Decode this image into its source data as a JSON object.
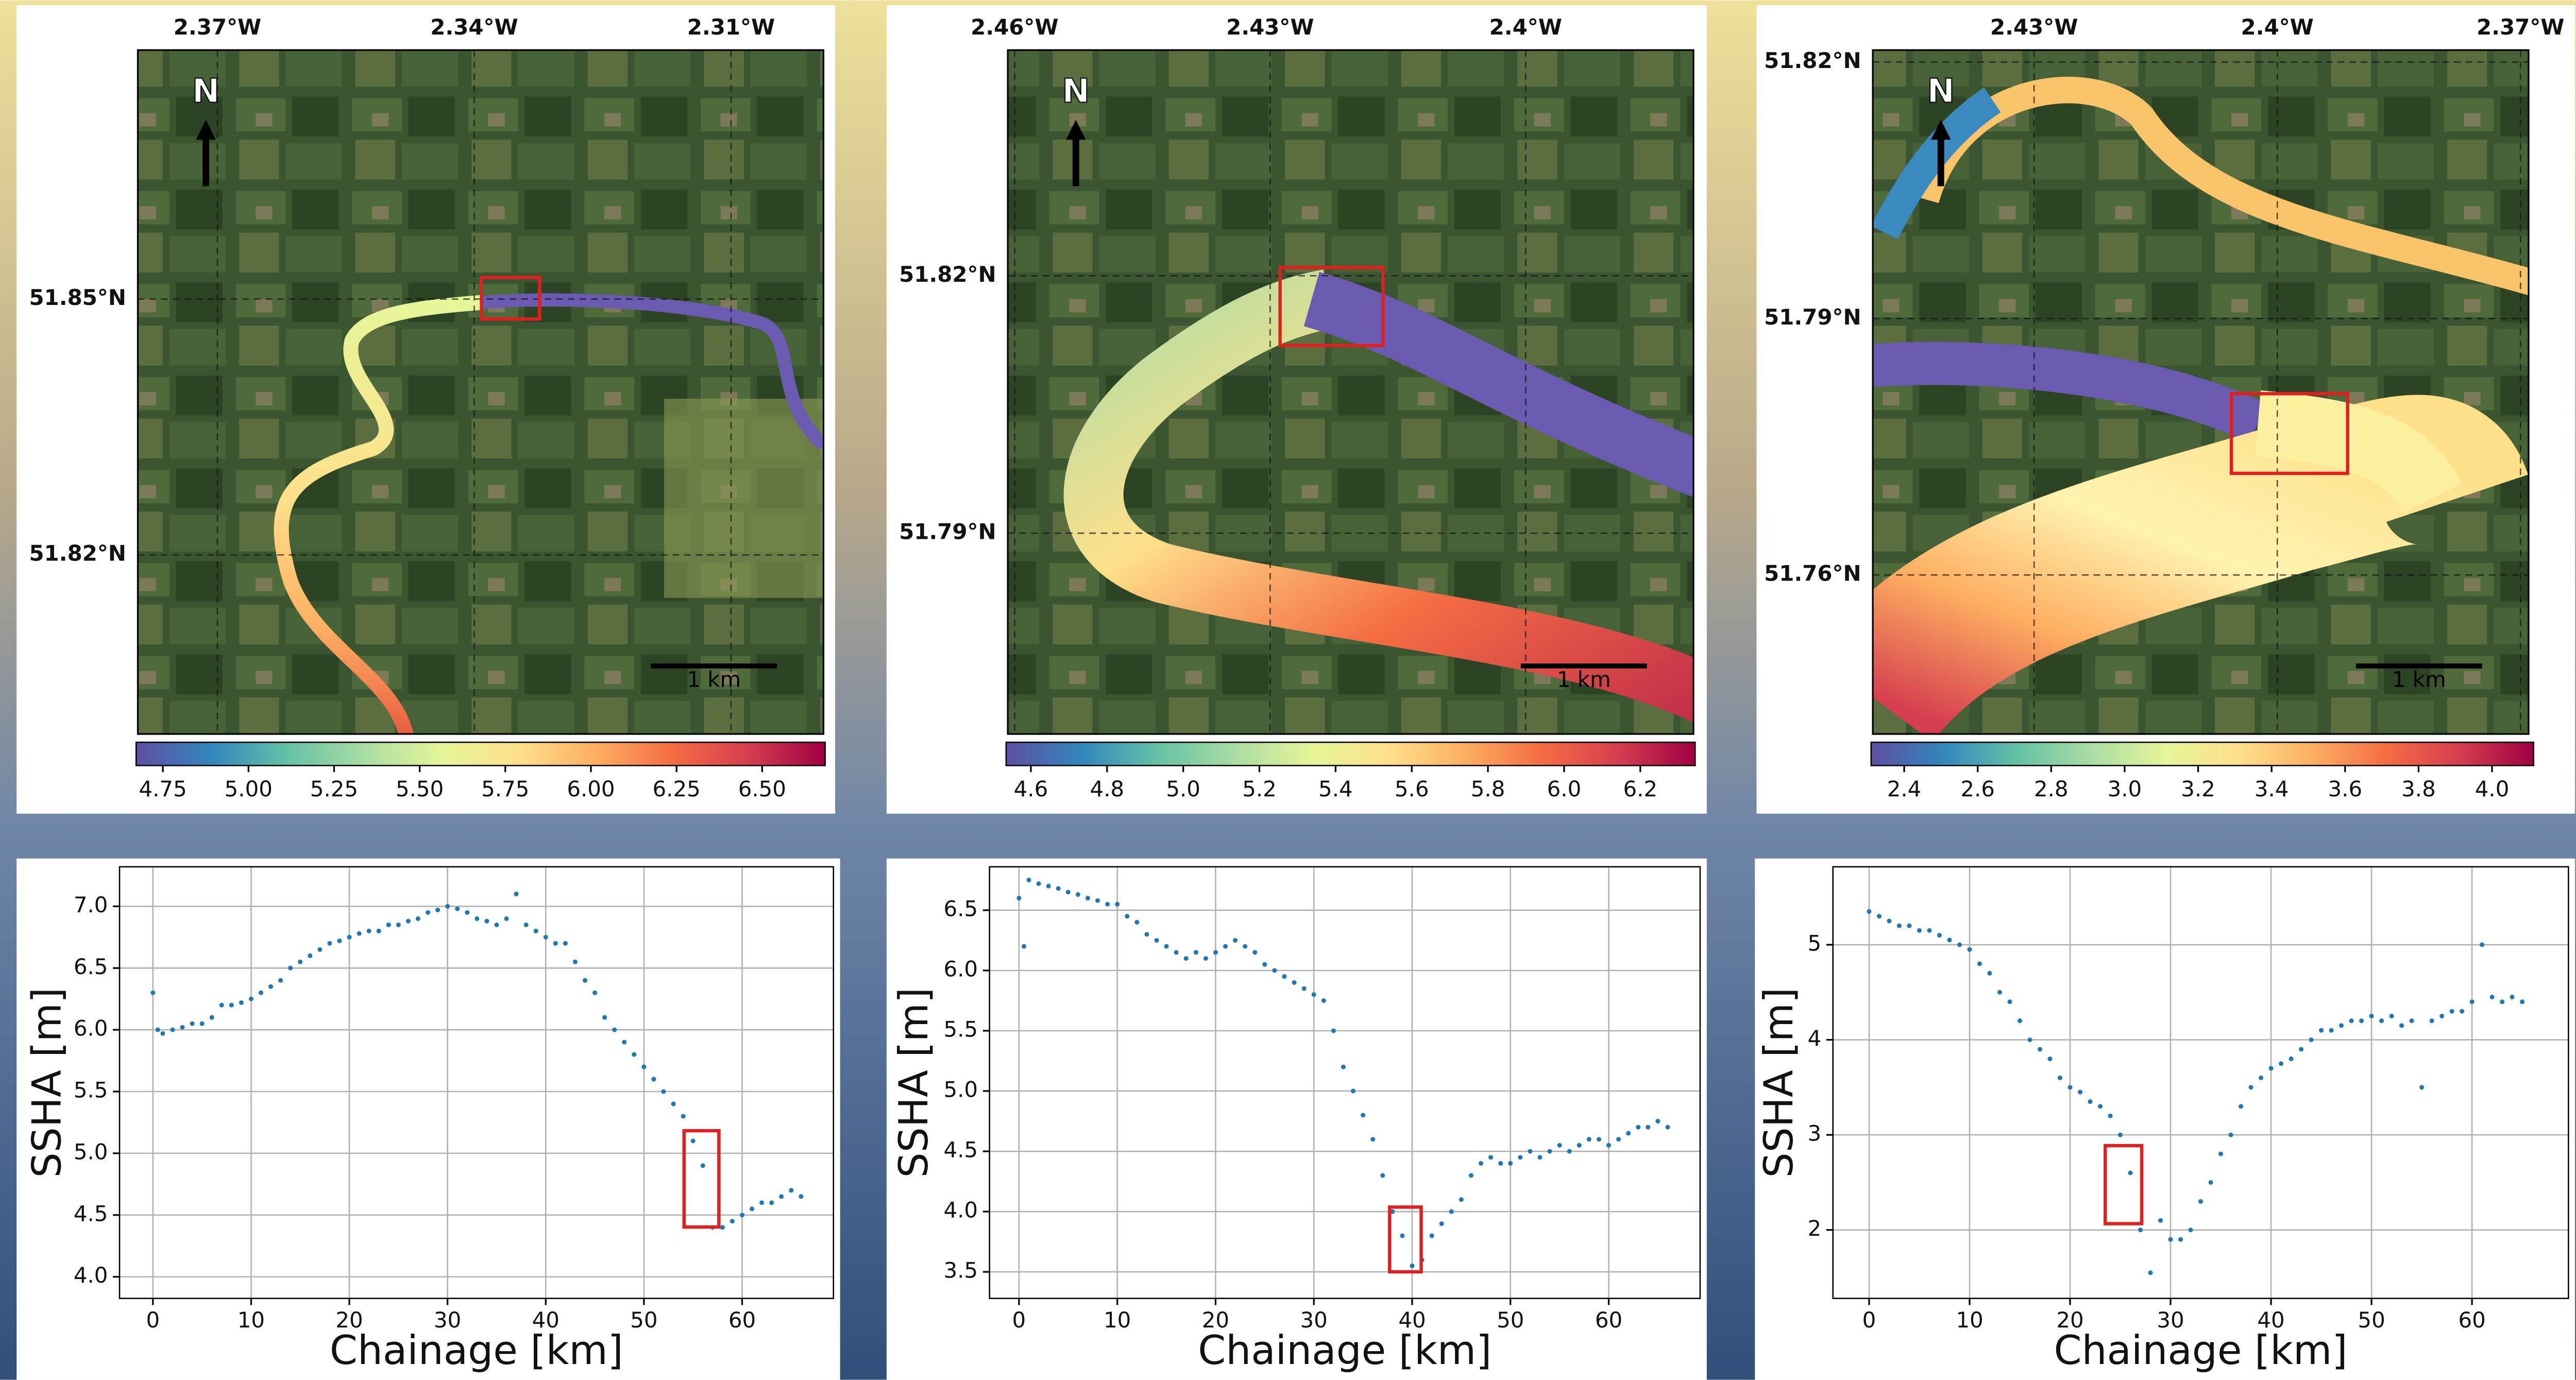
{
  "chart_data": [
    {
      "type": "map",
      "north_label": "N",
      "scale_label": "1 km",
      "xlim": [
        -2.3793,
        -2.2992
      ],
      "ylim": [
        51.799,
        51.8792
      ],
      "xticks": [
        {
          "value": -2.37,
          "label": "2.37°W"
        },
        {
          "value": -2.34,
          "label": "2.34°W"
        },
        {
          "value": -2.31,
          "label": "2.31°W"
        }
      ],
      "yticks": [
        {
          "value": 51.85,
          "label": "51.85°N"
        },
        {
          "value": 51.82,
          "label": "51.82°N"
        }
      ],
      "grid": true,
      "colorbar": {
        "lim": [
          4.672,
          6.684
        ],
        "colors": [
          "#5e4fa2",
          "#3288bd",
          "#66c2a5",
          "#abdda4",
          "#e6f598",
          "#fee08b",
          "#fdae61",
          "#f46d43",
          "#d53e4f",
          "#9e0142"
        ],
        "ticks": [
          4.75,
          {
            "value": 5,
            "label": "5.00"
          },
          5.25,
          {
            "value": 5.5,
            "label": "5.50"
          },
          5.75,
          {
            "value": 6,
            "label": "6.00"
          },
          6.25,
          {
            "value": 6.5,
            "label": "6.50"
          }
        ]
      }
    },
    {
      "type": "map",
      "north_label": "N",
      "scale_label": "1 km",
      "xlim": [
        -2.4608,
        -2.3803
      ],
      "ylim": [
        51.7666,
        51.8463
      ],
      "xticks": [
        {
          "value": -2.46,
          "label": "2.46°W"
        },
        {
          "value": -2.43,
          "label": "2.43°W"
        },
        {
          "value": -2.4,
          "label": "2.4°W"
        }
      ],
      "yticks": [
        {
          "value": 51.82,
          "label": "51.82°N"
        },
        {
          "value": 51.79,
          "label": "51.79°N"
        }
      ],
      "grid": true,
      "colorbar": {
        "lim": [
          4.535,
          6.344
        ],
        "colors": [
          "#5e4fa2",
          "#3288bd",
          "#66c2a5",
          "#abdda4",
          "#e6f598",
          "#fee08b",
          "#fdae61",
          "#f46d43",
          "#d53e4f",
          "#9e0142"
        ],
        "ticks": [
          4.6,
          4.8,
          {
            "value": 5,
            "label": "5.0"
          },
          5.2,
          5.4,
          5.6,
          5.8,
          {
            "value": 6,
            "label": "6.0"
          },
          6.2
        ]
      }
    },
    {
      "type": "map",
      "north_label": "N",
      "scale_label": "1 km",
      "xlim": [
        -2.4499,
        -2.369
      ],
      "ylim": [
        51.7414,
        51.8214
      ],
      "xticks": [
        {
          "value": -2.43,
          "label": "2.43°W"
        },
        {
          "value": -2.4,
          "label": "2.4°W"
        },
        {
          "value": -2.37,
          "label": "2.37°W"
        }
      ],
      "yticks": [
        {
          "value": 51.82,
          "label": "51.82°N"
        },
        {
          "value": 51.79,
          "label": "51.79°N"
        },
        {
          "value": 51.76,
          "label": "51.76°N"
        }
      ],
      "grid": true,
      "colorbar": {
        "lim": [
          2.31,
          4.113
        ],
        "colors": [
          "#5e4fa2",
          "#3288bd",
          "#66c2a5",
          "#abdda4",
          "#e6f598",
          "#fee08b",
          "#fdae61",
          "#f46d43",
          "#d53e4f",
          "#9e0142"
        ],
        "ticks": [
          2.4,
          2.6,
          2.8,
          {
            "value": 3,
            "label": "3.0"
          },
          3.2,
          3.4,
          3.6,
          3.8,
          {
            "value": 4,
            "label": "4.0"
          }
        ]
      }
    },
    {
      "type": "scatter",
      "x_label": "Chainage [km]",
      "y_label": "SSHA [m]",
      "color": "#1f77b4",
      "grid": true,
      "xlim": [
        -3.4,
        69.3
      ],
      "ylim": [
        3.825,
        7.32
      ],
      "xticks": [
        0,
        10,
        20,
        30,
        40,
        50,
        60
      ],
      "yticks": [
        {
          "value": 4,
          "label": "4.0"
        },
        4.5,
        {
          "value": 5,
          "label": "5.0"
        },
        5.5,
        {
          "value": 6,
          "label": "6.0"
        },
        6.5,
        {
          "value": 7,
          "label": "7.0"
        }
      ],
      "x": [
        0,
        0.5,
        1,
        2,
        3,
        4,
        5,
        6,
        7,
        8,
        9,
        10,
        11,
        12,
        13,
        14,
        15,
        16,
        17,
        18,
        19,
        20,
        21,
        22,
        23,
        24,
        25,
        26,
        27,
        28,
        29,
        30,
        31,
        32,
        33,
        34,
        35,
        36,
        37,
        38,
        39,
        40,
        41,
        42,
        43,
        44,
        45,
        46,
        47,
        48,
        49,
        50,
        51,
        52,
        53,
        54,
        55,
        56,
        57,
        58,
        59,
        60,
        61,
        62,
        63,
        64,
        65,
        66
      ],
      "values": [
        6.3,
        6.0,
        5.97,
        6.0,
        6.02,
        6.05,
        6.05,
        6.1,
        6.2,
        6.2,
        6.22,
        6.25,
        6.3,
        6.35,
        6.4,
        6.5,
        6.55,
        6.6,
        6.65,
        6.7,
        6.72,
        6.75,
        6.78,
        6.8,
        6.8,
        6.85,
        6.85,
        6.88,
        6.9,
        6.95,
        6.97,
        7.0,
        6.98,
        6.95,
        6.9,
        6.88,
        6.85,
        6.9,
        7.1,
        6.85,
        6.8,
        6.75,
        6.7,
        6.7,
        6.55,
        6.4,
        6.3,
        6.1,
        6.0,
        5.9,
        5.8,
        5.7,
        5.6,
        5.5,
        5.4,
        5.3,
        5.1,
        4.9,
        4.4,
        4.4,
        4.45,
        4.5,
        4.55,
        4.6,
        4.6,
        4.65,
        4.7,
        4.65
      ]
    },
    {
      "type": "scatter",
      "x_label": "Chainage [km]",
      "y_label": "SSHA [m]",
      "color": "#1f77b4",
      "grid": true,
      "xlim": [
        -3.0,
        69.3
      ],
      "ylim": [
        3.28,
        6.86
      ],
      "xticks": [
        0,
        10,
        20,
        30,
        40,
        50,
        60
      ],
      "yticks": [
        3.5,
        {
          "value": 4,
          "label": "4.0"
        },
        4.5,
        {
          "value": 5,
          "label": "5.0"
        },
        5.5,
        {
          "value": 6,
          "label": "6.0"
        },
        6.5
      ],
      "x": [
        0,
        0.5,
        1,
        2,
        3,
        4,
        5,
        6,
        7,
        8,
        9,
        10,
        11,
        12,
        13,
        14,
        15,
        16,
        17,
        18,
        19,
        20,
        21,
        22,
        23,
        24,
        25,
        26,
        27,
        28,
        29,
        30,
        31,
        32,
        33,
        34,
        35,
        36,
        37,
        38,
        39,
        40,
        41,
        42,
        43,
        44,
        45,
        46,
        47,
        48,
        49,
        50,
        51,
        52,
        53,
        54,
        55,
        56,
        57,
        58,
        59,
        60,
        61,
        62,
        63,
        64,
        65,
        66
      ],
      "values": [
        6.6,
        6.2,
        6.75,
        6.72,
        6.7,
        6.68,
        6.65,
        6.63,
        6.6,
        6.58,
        6.55,
        6.55,
        6.45,
        6.4,
        6.3,
        6.25,
        6.2,
        6.15,
        6.1,
        6.15,
        6.1,
        6.15,
        6.2,
        6.25,
        6.2,
        6.15,
        6.05,
        6.0,
        5.95,
        5.9,
        5.85,
        5.8,
        5.75,
        5.5,
        5.2,
        5.0,
        4.8,
        4.6,
        4.3,
        4.0,
        3.8,
        3.55,
        3.6,
        3.8,
        3.9,
        4.0,
        4.1,
        4.3,
        4.4,
        4.45,
        4.4,
        4.4,
        4.45,
        4.5,
        4.45,
        4.5,
        4.55,
        4.5,
        4.55,
        4.6,
        4.6,
        4.55,
        4.6,
        4.65,
        4.7,
        4.7,
        4.75,
        4.7
      ]
    },
    {
      "type": "scatter",
      "x_label": "Chainage [km]",
      "y_label": "SSHA [m]",
      "color": "#1f77b4",
      "grid": true,
      "xlim": [
        -3.6,
        69.6
      ],
      "ylim": [
        1.28,
        5.82
      ],
      "xticks": [
        0,
        10,
        20,
        30,
        40,
        50,
        60
      ],
      "yticks": [
        2,
        3,
        4,
        5
      ],
      "x": [
        0,
        1,
        2,
        3,
        4,
        5,
        6,
        7,
        8,
        9,
        10,
        11,
        12,
        13,
        14,
        15,
        16,
        17,
        18,
        19,
        20,
        21,
        22,
        23,
        24,
        25,
        26,
        27,
        28,
        29,
        30,
        31,
        32,
        33,
        34,
        35,
        36,
        37,
        38,
        39,
        40,
        41,
        42,
        43,
        44,
        45,
        46,
        47,
        48,
        49,
        50,
        51,
        52,
        53,
        54,
        55,
        56,
        57,
        58,
        59,
        60,
        61,
        62,
        63,
        64,
        65
      ],
      "values": [
        5.35,
        5.3,
        5.25,
        5.2,
        5.2,
        5.15,
        5.15,
        5.1,
        5.05,
        5.0,
        4.95,
        4.8,
        4.7,
        4.5,
        4.4,
        4.2,
        4.0,
        3.9,
        3.8,
        3.6,
        3.5,
        3.45,
        3.35,
        3.3,
        3.2,
        3.0,
        2.6,
        2.0,
        1.55,
        2.1,
        1.9,
        1.9,
        2.0,
        2.3,
        2.5,
        2.8,
        3.0,
        3.3,
        3.5,
        3.6,
        3.7,
        3.75,
        3.8,
        3.9,
        4.0,
        4.1,
        4.1,
        4.15,
        4.2,
        4.2,
        4.25,
        4.2,
        4.25,
        4.15,
        4.2,
        3.5,
        4.2,
        4.25,
        4.3,
        4.3,
        4.4,
        5.0,
        4.45,
        4.4,
        4.45,
        4.4
      ]
    }
  ]
}
